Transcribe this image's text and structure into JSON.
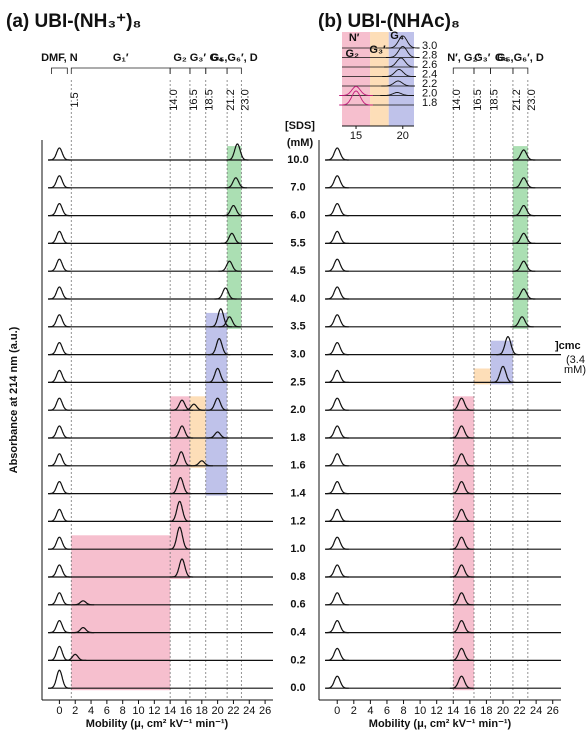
{
  "chart_data": [
    {
      "type": "trace-stack",
      "title": "(a) UBI-(NH₃⁺)₈",
      "categories": [
        "10.0",
        "7.0",
        "6.0",
        "5.5",
        "4.5",
        "4.0",
        "3.5",
        "3.0",
        "2.5",
        "2.0",
        "1.8",
        "1.6",
        "1.4",
        "1.2",
        "1.0",
        "0.8",
        "0.6",
        "0.4",
        "0.2",
        "0.0"
      ],
      "xlim": [
        -2.2,
        27
      ],
      "xticks": [
        0,
        2,
        4,
        6,
        8,
        10,
        12,
        14,
        16,
        18,
        20,
        22,
        24,
        26
      ],
      "markers": [
        1.5,
        {
          "value": 14.0,
          "label": "14.0"
        },
        16.5,
        18.5,
        21.2,
        {
          "value": 23.0,
          "label": "23.0"
        }
      ],
      "groups": [
        {
          "label": "DMF, N",
          "x": [
            -1,
            1
          ],
          "color": "#111111"
        },
        {
          "label": "G₁′",
          "x": [
            1.5,
            14.0
          ],
          "color": "#d0312d"
        },
        {
          "label": "G₂",
          "x": [
            14.0,
            16.5
          ],
          "color": "#d63ca0"
        },
        {
          "label": "G₃′",
          "x": [
            16.5,
            18.5
          ],
          "color": "#e89020"
        },
        {
          "label": "G₄",
          "x": [
            18.5,
            21.2
          ],
          "color": "#3a3aa0"
        },
        {
          "label": "G₅,G₆′, D",
          "x": [
            21.2,
            23.0
          ],
          "color": "#2a9a3a"
        }
      ],
      "regions": [
        {
          "x": [
            1.5,
            14.0
          ],
          "rows": [
            "1.0",
            "0.0"
          ],
          "color": "#f3a9bd"
        },
        {
          "x": [
            14.0,
            16.5
          ],
          "rows": [
            "2.0",
            "0.8"
          ],
          "color": "#f3a9bd"
        },
        {
          "x": [
            16.5,
            18.5
          ],
          "rows": [
            "2.0",
            "1.6"
          ],
          "color": "#fcd3a0"
        },
        {
          "x": [
            18.5,
            21.2
          ],
          "rows": [
            "3.5",
            "1.4"
          ],
          "color": "#a9aee3"
        },
        {
          "x": [
            21.2,
            23.0
          ],
          "rows": [
            "10.0",
            "3.5"
          ],
          "color": "#8fd49a"
        }
      ],
      "series": [
        {
          "peaks_x": [
            0,
            22.5
          ],
          "peaks_y": [
            12,
            16
          ]
        },
        {
          "peaks_x": [
            0,
            22.3
          ],
          "peaks_y": [
            12,
            10
          ]
        },
        {
          "peaks_x": [
            0,
            22.0
          ],
          "peaks_y": [
            12,
            10
          ]
        },
        {
          "peaks_x": [
            0,
            21.8
          ],
          "peaks_y": [
            12,
            10
          ]
        },
        {
          "peaks_x": [
            0,
            21.5
          ],
          "peaks_y": [
            12,
            10
          ]
        },
        {
          "peaks_x": [
            0,
            21.0
          ],
          "peaks_y": [
            12,
            11
          ]
        },
        {
          "peaks_x": [
            0,
            20.4,
            21.5
          ],
          "peaks_y": [
            12,
            18,
            10
          ]
        },
        {
          "peaks_x": [
            0,
            20.2
          ],
          "peaks_y": [
            12,
            16
          ]
        },
        {
          "peaks_x": [
            0,
            20.0
          ],
          "peaks_y": [
            12,
            14
          ]
        },
        {
          "peaks_x": [
            0,
            15.5,
            17.0,
            20.0
          ],
          "peaks_y": [
            12,
            10,
            6,
            12
          ]
        },
        {
          "peaks_x": [
            0,
            15.5,
            20.0
          ],
          "peaks_y": [
            12,
            12,
            6
          ]
        },
        {
          "peaks_x": [
            0,
            15.4,
            18.0
          ],
          "peaks_y": [
            12,
            14,
            5
          ]
        },
        {
          "peaks_x": [
            0,
            15.3
          ],
          "peaks_y": [
            12,
            16
          ]
        },
        {
          "peaks_x": [
            0,
            15.2
          ],
          "peaks_y": [
            12,
            20
          ]
        },
        {
          "peaks_x": [
            0,
            15.2
          ],
          "peaks_y": [
            12,
            22
          ]
        },
        {
          "peaks_x": [
            0,
            15.5
          ],
          "peaks_y": [
            12,
            18
          ]
        },
        {
          "peaks_x": [
            0,
            3.0
          ],
          "peaks_y": [
            12,
            4
          ]
        },
        {
          "peaks_x": [
            0,
            3.0
          ],
          "peaks_y": [
            12,
            5
          ]
        },
        {
          "peaks_x": [
            0,
            2.0
          ],
          "peaks_y": [
            14,
            6
          ]
        },
        {
          "peaks_x": [
            0
          ],
          "peaks_y": [
            18
          ]
        }
      ]
    },
    {
      "type": "trace-stack",
      "title": "(b) UBI-(NHAc)₈",
      "xlim": [
        -2.2,
        27
      ],
      "xticks": [
        0,
        2,
        4,
        6,
        8,
        10,
        12,
        14,
        16,
        18,
        20,
        22,
        24,
        26
      ],
      "markers": [
        {
          "value": 14.0,
          "label": "14.0"
        },
        16.5,
        18.5,
        21.2,
        {
          "value": 23.0,
          "label": "23.0"
        }
      ],
      "groups": [
        {
          "label": "N′, G₂′",
          "x": [
            14.0,
            16.5
          ],
          "color": "#d63ca0"
        },
        {
          "label": "G₃′",
          "x": [
            16.5,
            18.5
          ],
          "color": "#e89020"
        },
        {
          "label": "G₄",
          "x": [
            18.5,
            21.2
          ],
          "color": "#3a3aa0"
        },
        {
          "label": "G₅,G₆′, D",
          "x": [
            21.2,
            23.0
          ],
          "color": "#2a9a3a"
        }
      ],
      "regions": [
        {
          "x": [
            14.0,
            16.5
          ],
          "rows": [
            "2.0",
            "0.0"
          ],
          "color": "#f3a9bd"
        },
        {
          "x": [
            16.5,
            18.5
          ],
          "rows": [
            "2.5",
            "2.5"
          ],
          "color": "#fcd3a0"
        },
        {
          "x": [
            18.5,
            21.2
          ],
          "rows": [
            "3.0",
            "2.5"
          ],
          "color": "#a9aee3"
        },
        {
          "x": [
            21.2,
            23.0
          ],
          "rows": [
            "10.0",
            "3.5"
          ],
          "color": "#8fd49a"
        }
      ],
      "series": [
        {
          "peaks_x": [
            0,
            22.5
          ],
          "peaks_y": [
            12,
            10
          ]
        },
        {
          "peaks_x": [
            0,
            22.5
          ],
          "peaks_y": [
            12,
            10
          ]
        },
        {
          "peaks_x": [
            0,
            22.5
          ],
          "peaks_y": [
            12,
            10
          ]
        },
        {
          "peaks_x": [
            0,
            22.5
          ],
          "peaks_y": [
            12,
            10
          ]
        },
        {
          "peaks_x": [
            0,
            22.5
          ],
          "peaks_y": [
            12,
            10
          ]
        },
        {
          "peaks_x": [
            0,
            22.5
          ],
          "peaks_y": [
            12,
            10
          ]
        },
        {
          "peaks_x": [
            0,
            22.3
          ],
          "peaks_y": [
            12,
            10
          ]
        },
        {
          "peaks_x": [
            0,
            20.6
          ],
          "peaks_y": [
            12,
            18
          ]
        },
        {
          "peaks_x": [
            0,
            20.0
          ],
          "peaks_y": [
            12,
            16
          ]
        },
        {
          "peaks_x": [
            0,
            15.0
          ],
          "peaks_y": [
            12,
            12
          ]
        },
        {
          "peaks_x": [
            0,
            15.0
          ],
          "peaks_y": [
            12,
            12
          ]
        },
        {
          "peaks_x": [
            0,
            15.0
          ],
          "peaks_y": [
            12,
            12
          ]
        },
        {
          "peaks_x": [
            0,
            15.0
          ],
          "peaks_y": [
            12,
            12
          ]
        },
        {
          "peaks_x": [
            0,
            15.0
          ],
          "peaks_y": [
            12,
            12
          ]
        },
        {
          "peaks_x": [
            0,
            15.0
          ],
          "peaks_y": [
            12,
            12
          ]
        },
        {
          "peaks_x": [
            0,
            15.0
          ],
          "peaks_y": [
            12,
            12
          ]
        },
        {
          "peaks_x": [
            0,
            15.0
          ],
          "peaks_y": [
            12,
            12
          ]
        },
        {
          "peaks_x": [
            0,
            15.0
          ],
          "peaks_y": [
            12,
            12
          ]
        },
        {
          "peaks_x": [
            0,
            15.0
          ],
          "peaks_y": [
            12,
            12
          ]
        },
        {
          "peaks_x": [
            0,
            15.0
          ],
          "peaks_y": [
            12,
            12
          ]
        }
      ]
    },
    {
      "type": "inset",
      "categories": [
        "3.0",
        "2.8",
        "2.6",
        "2.4",
        "2.2",
        "2.0",
        "1.8"
      ],
      "xlim": [
        13.5,
        21.2
      ],
      "xticks": [
        15,
        20
      ],
      "labels": [
        {
          "text": "N′",
          "x": 14.8,
          "color": "#d63ca0"
        },
        {
          "text": "G₂",
          "x": 14.6,
          "color": "#d63ca0"
        },
        {
          "text": "G₃′",
          "x": 17.3,
          "color": "#e89020"
        },
        {
          "text": "G₄",
          "x": 19.4,
          "color": "#3a3aa0"
        }
      ],
      "regions": [
        {
          "x": [
            13.5,
            16.5
          ],
          "color": "#f3a9bd"
        },
        {
          "x": [
            16.5,
            18.5
          ],
          "color": "#fcd3a0"
        },
        {
          "x": [
            18.5,
            21.2
          ],
          "color": "#a9aee3"
        }
      ],
      "series": [
        {
          "peaks_x": [
            20.0
          ],
          "peaks_y": [
            12
          ]
        },
        {
          "peaks_x": [
            20.0
          ],
          "peaks_y": [
            11
          ]
        },
        {
          "peaks_x": [
            19.8
          ],
          "peaks_y": [
            9
          ]
        },
        {
          "peaks_x": [
            19.6
          ],
          "peaks_y": [
            7
          ]
        },
        {
          "peaks_x": [
            19.5
          ],
          "peaks_y": [
            5
          ]
        },
        {
          "peaks_x": [
            15.0,
            19.4
          ],
          "peaks_y": [
            9,
            3
          ]
        },
        {
          "peaks_x": [
            15.0
          ],
          "peaks_y": [
            14
          ]
        }
      ]
    }
  ],
  "sds_header": [
    "[SDS]",
    "(mM)"
  ],
  "y_title": "Absorbance at 214 nm (a.u.)",
  "x_title": "Mobility (μ, cm² kV⁻¹ min⁻¹)",
  "cmc": "]cmc",
  "cmc_note": [
    "(3.4",
    "mM)"
  ]
}
